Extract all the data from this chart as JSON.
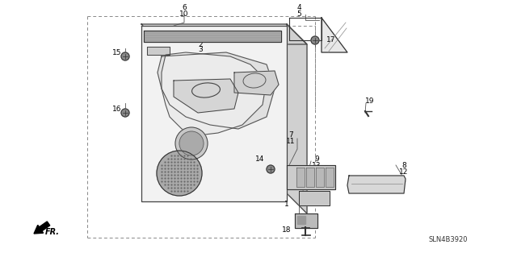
{
  "bg_color": "#ffffff",
  "line_color": "#444444",
  "label_color": "#000000",
  "diagram_code": "SLN4B3920",
  "fig_w": 6.4,
  "fig_h": 3.19,
  "dpi": 100
}
